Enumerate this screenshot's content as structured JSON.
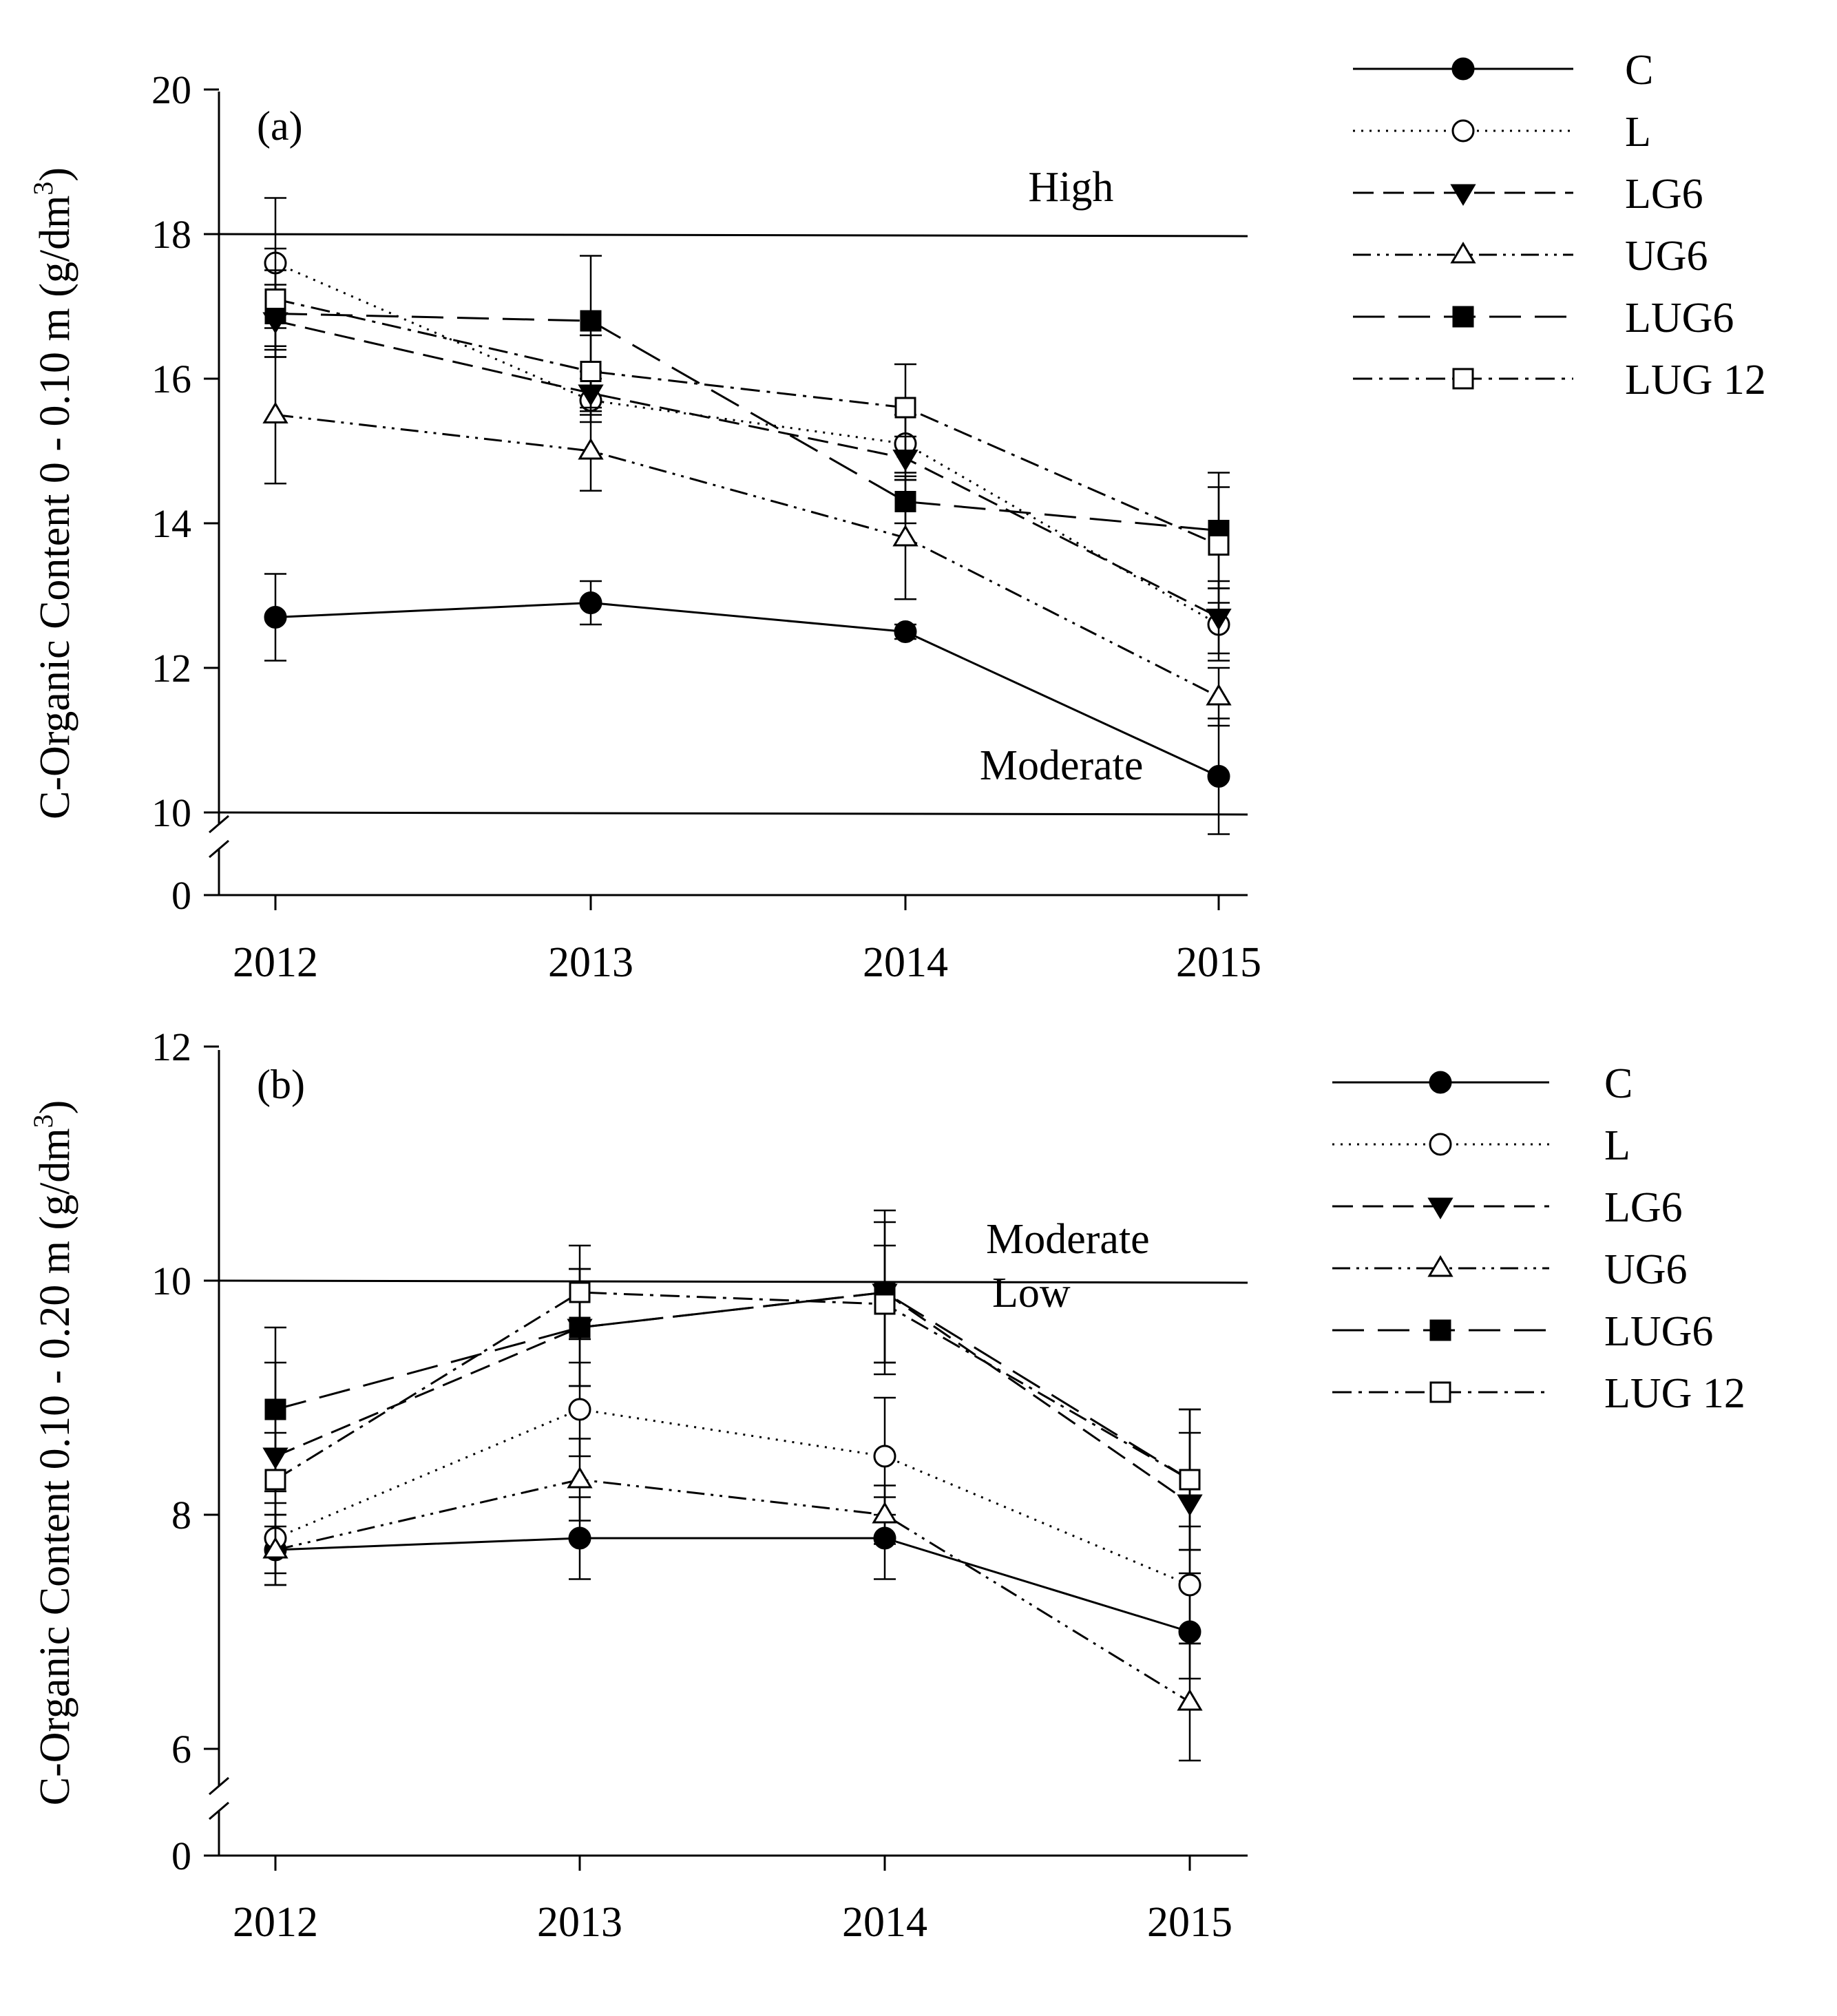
{
  "legend": [
    {
      "name": "C",
      "marker": "circle-filled",
      "dash": "solid"
    },
    {
      "name": "L",
      "marker": "circle-open",
      "dash": "dotted"
    },
    {
      "name": "LG6",
      "marker": "triangle-down-filled",
      "dash": "dashed"
    },
    {
      "name": "UG6",
      "marker": "triangle-up-open",
      "dash": "dash-dot-dot"
    },
    {
      "name": "LUG6",
      "marker": "square-filled",
      "dash": "long-dash"
    },
    {
      "name": "LUG 12",
      "marker": "square-open",
      "dash": "dash-dot"
    }
  ],
  "chart_data": [
    {
      "type": "line",
      "panel_label": "(a)",
      "ylabel": "C-Organic Content 0 - 0.10 m (g/dm³)",
      "ylabel_main": "C-Organic Content 0 - 0.10 m (g/dm",
      "ylabel_sup": "3",
      "ylabel_tail": ")",
      "x": [
        "2012",
        "2013",
        "2014",
        "2015"
      ],
      "yticks": [
        20,
        18,
        16,
        14,
        12,
        10
      ],
      "y_zero_tick": "0",
      "ylim": [
        9.5,
        20
      ],
      "axis_break": true,
      "grid": false,
      "legend_position": "right",
      "reference_lines": [
        {
          "y": 18,
          "label": "High",
          "label_x": 2.53
        },
        {
          "y": 10,
          "label": "Moderate",
          "label_x": 2.5
        }
      ],
      "series": [
        {
          "name": "C",
          "values": [
            12.7,
            12.9,
            12.5,
            10.5
          ],
          "errors": [
            0.6,
            0.3,
            0.1,
            0.8
          ]
        },
        {
          "name": "L",
          "values": [
            17.6,
            15.7,
            15.1,
            12.6
          ],
          "errors": [
            0.9,
            0.3,
            0.4,
            0.5
          ]
        },
        {
          "name": "LG6",
          "values": [
            16.8,
            15.8,
            14.9,
            12.7
          ],
          "errors": [
            0.5,
            0.3,
            0.3,
            0.5
          ]
        },
        {
          "name": "UG6",
          "values": [
            15.5,
            15.0,
            13.8,
            11.6
          ],
          "errors": [
            0.95,
            0.55,
            0.85,
            0.4
          ]
        },
        {
          "name": "LUG6",
          "values": [
            16.9,
            16.8,
            14.3,
            13.9
          ],
          "errors": [
            0.6,
            0.9,
            0.3,
            0.8
          ]
        },
        {
          "name": "LUG 12",
          "values": [
            17.1,
            16.1,
            15.6,
            13.7
          ],
          "errors": [
            0.7,
            0.5,
            0.6,
            0.8
          ]
        }
      ]
    },
    {
      "type": "line",
      "panel_label": "(b)",
      "ylabel": "C-Organic Content 0.10 - 0.20 m (g/dm³)",
      "ylabel_main": "C-Organic Content 0.10 - 0.20 m (g/dm",
      "ylabel_sup": "3",
      "ylabel_tail": ")",
      "x": [
        "2012",
        "2013",
        "2014",
        "2015"
      ],
      "yticks": [
        12,
        10,
        8,
        6
      ],
      "y_zero_tick": "0",
      "ylim": [
        5.6,
        12
      ],
      "axis_break": true,
      "grid": false,
      "legend_position": "right",
      "reference_lines": [
        {
          "y": 10,
          "label": "Moderate",
          "label_x": 2.6,
          "label_offset": 40
        },
        {
          "y": 10,
          "label": "Low",
          "label_x": 2.48,
          "label_offset": -38
        }
      ],
      "series": [
        {
          "name": "C",
          "values": [
            7.7,
            7.8,
            7.8,
            7.0
          ],
          "errors": [
            0.3,
            0.35,
            0.35,
            0.4
          ]
        },
        {
          "name": "L",
          "values": [
            7.8,
            8.9,
            8.5,
            7.4
          ],
          "errors": [
            0.3,
            0.4,
            0.5,
            0.5
          ]
        },
        {
          "name": "LG6",
          "values": [
            8.5,
            9.6,
            9.9,
            8.1
          ],
          "errors": [
            0.8,
            0.5,
            0.6,
            0.6
          ]
        },
        {
          "name": "UG6",
          "values": [
            7.7,
            8.3,
            8.0,
            6.4
          ],
          "errors": [
            0.3,
            0.35,
            0.25,
            0.5
          ]
        },
        {
          "name": "LUG6",
          "values": [
            8.9,
            9.6,
            9.9,
            8.3
          ],
          "errors": [
            0.7,
            0.5,
            0.7,
            0.6
          ]
        },
        {
          "name": "LUG 12",
          "values": [
            8.3,
            9.9,
            9.8,
            8.3
          ],
          "errors": [
            0.4,
            0.4,
            0.5,
            0.6
          ]
        }
      ]
    }
  ]
}
